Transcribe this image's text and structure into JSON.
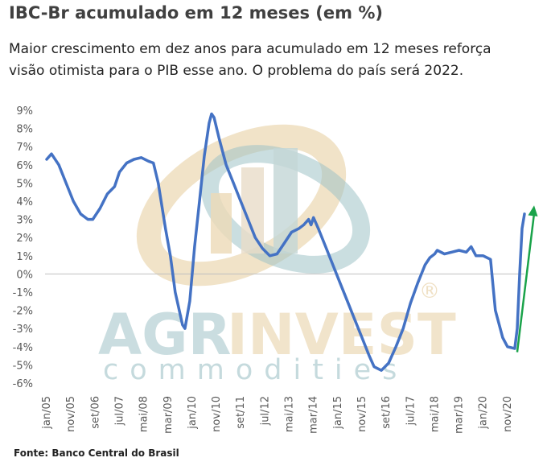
{
  "header": {
    "title": "IBC-Br acumulado em 12 meses (em %)",
    "subtitle_line1": "Maior crescimento em dez anos para acumulado em 12 meses reforça",
    "subtitle_line2": "visão otimista para o PIB esse ano. O problema do país será 2022."
  },
  "source": "Fonte: Banco  Central do Brasil",
  "watermark": {
    "line1a": "AGR",
    "line1b": "INVEST",
    "line2": "commodities",
    "registered": "®"
  },
  "colors": {
    "line": "#4472c4",
    "arrow": "#1aa34a",
    "tick_text": "#595959",
    "wm_teal": "#9fc3c7",
    "wm_gold": "#ecd9b6"
  },
  "chart_data": {
    "type": "line",
    "title": "IBC-Br acumulado em 12 meses (em %)",
    "xlabel": "",
    "ylabel": "",
    "ylim": [
      -6,
      9
    ],
    "y_ticks": [
      "9%",
      "8%",
      "7%",
      "6%",
      "5%",
      "4%",
      "3%",
      "2%",
      "1%",
      "0%",
      "-1%",
      "-2%",
      "-3%",
      "-4%",
      "-5%",
      "-6%"
    ],
    "y_tick_values": [
      9,
      8,
      7,
      6,
      5,
      4,
      3,
      2,
      1,
      0,
      -1,
      -2,
      -3,
      -4,
      -5,
      -6
    ],
    "x_ticks": [
      "jan/05",
      "nov/05",
      "set/06",
      "jul/07",
      "mai/08",
      "mar/09",
      "jan/10",
      "nov/10",
      "set/11",
      "jul/12",
      "mai/13",
      "mar/14",
      "jan/15",
      "nov/15",
      "set/16",
      "jul/17",
      "mai/18",
      "mar/19",
      "jan/20",
      "nov/20"
    ],
    "x_range": [
      "jan/05",
      "jun/21"
    ],
    "grid": false,
    "legend": "none",
    "series": [
      {
        "points": [
          [
            "jan/05",
            6.3
          ],
          [
            "mar/05",
            6.6
          ],
          [
            "jun/05",
            6.0
          ],
          [
            "set/05",
            5.0
          ],
          [
            "dez/05",
            4.0
          ],
          [
            "mar/06",
            3.3
          ],
          [
            "jun/06",
            3.0
          ],
          [
            "ago/06",
            3.0
          ],
          [
            "nov/06",
            3.6
          ],
          [
            "fev/07",
            4.4
          ],
          [
            "mai/07",
            4.8
          ],
          [
            "jul/07",
            5.6
          ],
          [
            "out/07",
            6.1
          ],
          [
            "jan/08",
            6.3
          ],
          [
            "abr/08",
            6.4
          ],
          [
            "jul/08",
            6.2
          ],
          [
            "set/08",
            6.1
          ],
          [
            "nov/08",
            5.0
          ],
          [
            "fev/09",
            2.5
          ],
          [
            "abr/09",
            1.0
          ],
          [
            "jun/09",
            -1.0
          ],
          [
            "set/09",
            -2.8
          ],
          [
            "out/09",
            -3.0
          ],
          [
            "dez/09",
            -1.5
          ],
          [
            "fev/10",
            1.5
          ],
          [
            "abr/10",
            4.0
          ],
          [
            "jun/10",
            6.5
          ],
          [
            "ago/10",
            8.3
          ],
          [
            "set/10",
            8.8
          ],
          [
            "out/10",
            8.6
          ],
          [
            "dez/10",
            7.5
          ],
          [
            "mar/11",
            6.0
          ],
          [
            "jun/11",
            5.0
          ],
          [
            "set/11",
            4.0
          ],
          [
            "dez/11",
            3.0
          ],
          [
            "mar/12",
            2.0
          ],
          [
            "jun/12",
            1.4
          ],
          [
            "set/12",
            1.0
          ],
          [
            "dez/12",
            1.1
          ],
          [
            "mar/13",
            1.7
          ],
          [
            "jun/13",
            2.3
          ],
          [
            "set/13",
            2.5
          ],
          [
            "nov/13",
            2.7
          ],
          [
            "jan/14",
            3.0
          ],
          [
            "fev/14",
            2.7
          ],
          [
            "mar/14",
            3.1
          ],
          [
            "mai/14",
            2.5
          ],
          [
            "ago/14",
            1.5
          ],
          [
            "nov/14",
            0.5
          ],
          [
            "fev/15",
            -0.5
          ],
          [
            "mai/15",
            -1.5
          ],
          [
            "ago/15",
            -2.5
          ],
          [
            "nov/15",
            -3.5
          ],
          [
            "fev/16",
            -4.5
          ],
          [
            "abr/16",
            -5.1
          ],
          [
            "jul/16",
            -5.3
          ],
          [
            "out/16",
            -4.9
          ],
          [
            "jan/17",
            -4.0
          ],
          [
            "abr/17",
            -3.0
          ],
          [
            "jul/17",
            -1.6
          ],
          [
            "out/17",
            -0.5
          ],
          [
            "jan/18",
            0.5
          ],
          [
            "mar/18",
            0.9
          ],
          [
            "mai/18",
            1.1
          ],
          [
            "jun/18",
            1.3
          ],
          [
            "set/18",
            1.1
          ],
          [
            "dez/18",
            1.2
          ],
          [
            "mar/19",
            1.3
          ],
          [
            "jun/19",
            1.2
          ],
          [
            "ago/19",
            1.5
          ],
          [
            "out/19",
            1.0
          ],
          [
            "jan/20",
            1.0
          ],
          [
            "abr/20",
            0.8
          ],
          [
            "jun/20",
            -2.0
          ],
          [
            "set/20",
            -3.5
          ],
          [
            "nov/20",
            -4.0
          ],
          [
            "fev/21",
            -4.1
          ],
          [
            "mar/21",
            -3.0
          ],
          [
            "abr/21",
            0.0
          ],
          [
            "mai/21",
            2.5
          ],
          [
            "jun/21",
            3.3
          ]
        ]
      }
    ],
    "annotations": [
      {
        "type": "arrow",
        "from": [
          "mar/21",
          -4.3
        ],
        "to": [
          "jun/21",
          3.5
        ]
      }
    ]
  }
}
